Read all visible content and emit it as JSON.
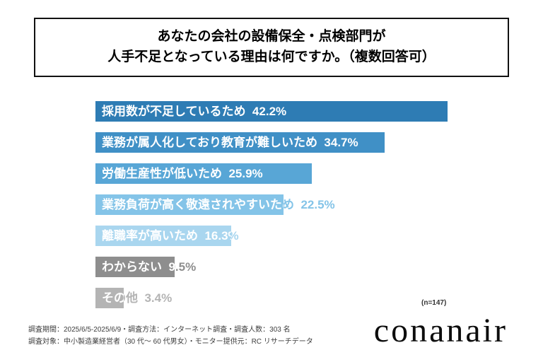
{
  "title": {
    "line1": "あなたの会社の設備保全・点検部門が",
    "line2": "人手不足となっている理由は何ですか。（複数回答可）"
  },
  "chart_data": {
    "type": "bar",
    "orientation": "horizontal",
    "title": "あなたの会社の設備保全・点検部門が人手不足となっている理由は何ですか。（複数回答可）",
    "categories": [
      "採用数が不足しているため",
      "業務が属人化しており教育が難しいため",
      "労働生産性が低いため",
      "業務負荷が高く敬遠されやすいため",
      "離職率が高いため",
      "わからない",
      "その他"
    ],
    "values": [
      42.2,
      34.7,
      25.9,
      22.5,
      16.3,
      9.5,
      3.4
    ],
    "value_suffix": "%",
    "xlim": [
      0,
      45
    ],
    "grid": false,
    "legend": "none",
    "bar_colors": [
      "#2e7cb4",
      "#4090c6",
      "#58a6d6",
      "#84c4e8",
      "#a9d6ef",
      "#8e8e8e",
      "#b4b4b4"
    ],
    "sample_note": "(n=147)"
  },
  "footer": {
    "note_line1": "調査期間：2025/6/5-2025/6/9・調査方法：インターネット調査・調査人数：303 名",
    "note_line2": "調査対象：中小製造業経営者（30 代～ 60 代男女）・モニター提供元：RC リサーチデータ",
    "logo_text": "conanair"
  }
}
